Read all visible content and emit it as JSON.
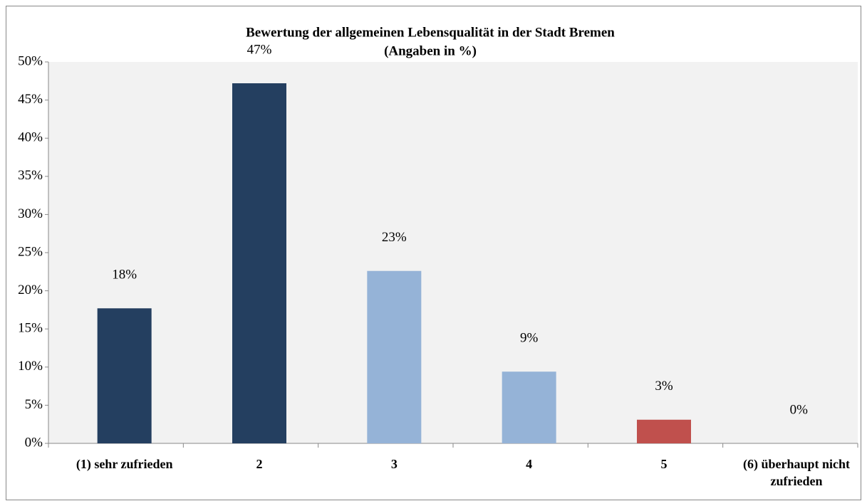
{
  "chart_data": {
    "type": "bar",
    "title": "Bewertung der allgemeinen Lebensqualität in der Stadt Bremen",
    "subtitle": "(Angaben in %)",
    "categories": [
      "(1) sehr zufrieden",
      "2",
      "3",
      "4",
      "5",
      "(6) überhaupt nicht zufrieden"
    ],
    "values": [
      17.7,
      47.2,
      22.6,
      9.4,
      3.1,
      0
    ],
    "value_labels": [
      "18%",
      "47%",
      "23%",
      "9%",
      "3%",
      "0%"
    ],
    "colors": [
      "#243f60",
      "#243f60",
      "#95b3d7",
      "#95b3d7",
      "#c0504d",
      "#c0504d"
    ],
    "ylim": [
      0,
      50
    ],
    "yticks": [
      {
        "value": 0,
        "label": "0%"
      },
      {
        "value": 5,
        "label": "5%"
      },
      {
        "value": 10,
        "label": "10%"
      },
      {
        "value": 15,
        "label": "15%"
      },
      {
        "value": 20,
        "label": "20%"
      },
      {
        "value": 25,
        "label": "25%"
      },
      {
        "value": 30,
        "label": "30%"
      },
      {
        "value": 35,
        "label": "35%"
      },
      {
        "value": 40,
        "label": "40%"
      },
      {
        "value": 45,
        "label": "45%"
      },
      {
        "value": 50,
        "label": "50%"
      }
    ],
    "grid": false
  }
}
